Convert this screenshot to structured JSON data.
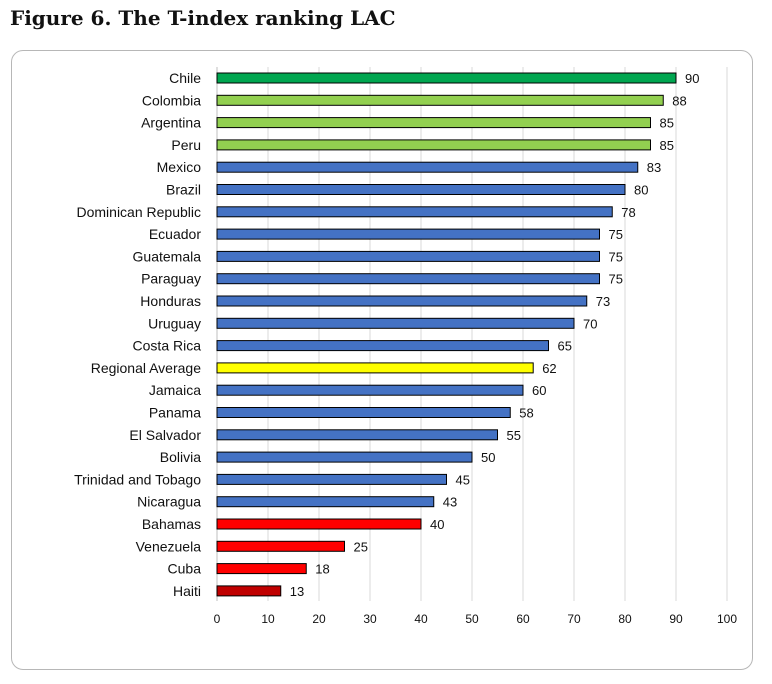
{
  "figure": {
    "title": "Figure 6.  The T-index ranking LAC"
  },
  "chart_data": {
    "type": "bar",
    "orientation": "horizontal",
    "title": "Figure 6.  The T-index ranking LAC",
    "xlabel": "",
    "ylabel": "",
    "xlim": [
      0,
      100
    ],
    "x_ticks": [
      0,
      10,
      20,
      30,
      40,
      50,
      60,
      70,
      80,
      90,
      100
    ],
    "grid": true,
    "legend": "none",
    "categories": [
      "Chile",
      "Colombia",
      "Argentina",
      "Peru",
      "Mexico",
      "Brazil",
      "Dominican Republic",
      "Ecuador",
      "Guatemala",
      "Paraguay",
      "Honduras",
      "Uruguay",
      "Costa Rica",
      "Regional Average",
      "Jamaica",
      "Panama",
      "El Salvador",
      "Bolivia",
      "Trinidad and Tobago",
      "Nicaragua",
      "Bahamas",
      "Venezuela",
      "Cuba",
      "Haiti"
    ],
    "values": [
      90,
      87.5,
      85,
      85,
      82.5,
      80,
      77.5,
      75,
      75,
      75,
      72.5,
      70,
      65,
      62,
      60,
      57.5,
      55,
      50,
      45,
      42.5,
      40,
      25,
      17.5,
      12.5
    ],
    "value_labels": [
      "90",
      "88",
      "85",
      "85",
      "83",
      "80",
      "78",
      "75",
      "75",
      "75",
      "73",
      "70",
      "65",
      "62",
      "60",
      "58",
      "55",
      "50",
      "45",
      "43",
      "40",
      "25",
      "18",
      "13"
    ],
    "bar_colors": [
      "#00A650",
      "#92D050",
      "#92D050",
      "#92D050",
      "#4472C4",
      "#4472C4",
      "#4472C4",
      "#4472C4",
      "#4472C4",
      "#4472C4",
      "#4472C4",
      "#4472C4",
      "#4472C4",
      "#FFFF00",
      "#4472C4",
      "#4472C4",
      "#4472C4",
      "#4472C4",
      "#4472C4",
      "#4472C4",
      "#FF0000",
      "#FF0000",
      "#FF0000",
      "#C00000"
    ],
    "colors": {
      "grid": "#d9d9d9",
      "bar_outline": "#000000",
      "axis": "#bfbfbf"
    }
  }
}
